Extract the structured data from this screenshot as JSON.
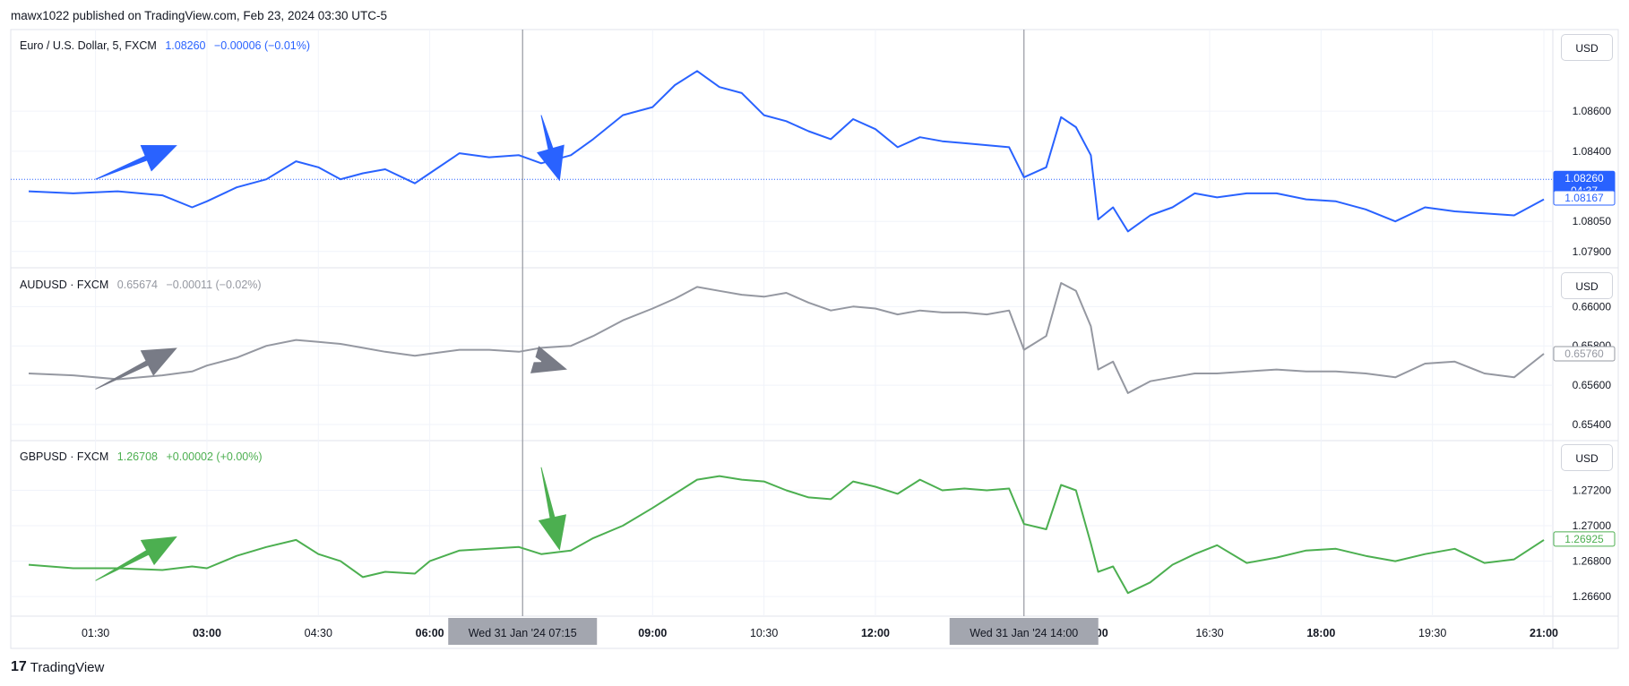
{
  "header": {
    "published_text": "mawx1022 published on TradingView.com, Feb 23, 2024 03:30 UTC-5"
  },
  "footer": {
    "brand": "TradingView",
    "logo_glyph": "17"
  },
  "colors": {
    "eur": "#2962ff",
    "aud": "#9598a1",
    "gbp": "#4caf50",
    "arrow_gray": "#787b86",
    "grid": "#f0f3fa",
    "border": "#e0e3eb"
  },
  "x_axis": {
    "tick_labels": [
      "01:30",
      "03:00",
      "04:30",
      "06:00",
      "09:00",
      "10:30",
      "12:00",
      "16:30",
      "18:00",
      "19:30",
      "21:00"
    ],
    "bold_ticks": [
      "03:00",
      "06:00",
      "09:00",
      "12:00",
      "18:00",
      "21:00"
    ],
    "crosshair_labels": [
      "Wed 31 Jan '24   07:15",
      "Wed 31 Jan '24   14:00"
    ],
    "cut_label": ":00"
  },
  "panes": [
    {
      "id": "eurusd",
      "legend": {
        "symbol": "Euro / U.S. Dollar, 5, FXCM",
        "price": "1.08260",
        "change": "−0.00006 (−0.01%)"
      },
      "usd_button": "USD",
      "color": "#2962ff",
      "ylim": [
        1.0785,
        1.0898
      ],
      "y_ticks": [
        "1.08600",
        "1.08400",
        "1.08050",
        "1.07900"
      ],
      "price_tags": [
        {
          "text": "1.08260",
          "sub": "04:37",
          "value": 1.0826,
          "style": "filled"
        },
        {
          "text": "1.08167",
          "value": 1.08167,
          "style": "outline"
        }
      ],
      "current_line": 1.0826,
      "arrows": [
        {
          "from": [
            1.5,
            1.0826
          ],
          "to": [
            2.6,
            1.0843
          ]
        },
        {
          "from": [
            7.5,
            1.0858
          ],
          "to": [
            7.75,
            1.0825
          ]
        }
      ]
    },
    {
      "id": "audusd",
      "legend": {
        "symbol": "AUDUSD · FXCM",
        "price": "0.65674",
        "change": "−0.00011 (−0.02%)"
      },
      "usd_button": "USD",
      "color": "#9598a1",
      "ylim": [
        0.6535,
        0.6617
      ],
      "y_ticks": [
        "0.66000",
        "0.65800",
        "0.65600",
        "0.65400"
      ],
      "price_tags": [
        {
          "text": "0.65760",
          "value": 0.6576,
          "style": "outline"
        }
      ],
      "arrows": [
        {
          "from": [
            1.5,
            0.6558
          ],
          "to": [
            2.6,
            0.6579
          ]
        },
        {
          "from": [
            7.5,
            0.6572
          ],
          "to": [
            7.85,
            0.6568
          ]
        }
      ]
    },
    {
      "id": "gbpusd",
      "legend": {
        "symbol": "GBPUSD · FXCM",
        "price": "1.26708",
        "change": "+0.00002 (+0.00%)"
      },
      "usd_button": "USD",
      "color": "#4caf50",
      "ylim": [
        1.2652,
        1.2745
      ],
      "y_ticks": [
        "1.27200",
        "1.27000",
        "1.26800",
        "1.26600"
      ],
      "price_tags": [
        {
          "text": "1.26925",
          "value": 1.26925,
          "style": "outline"
        }
      ],
      "arrows": [
        {
          "from": [
            1.5,
            1.2669
          ],
          "to": [
            2.6,
            1.2694
          ]
        },
        {
          "from": [
            7.5,
            1.2733
          ],
          "to": [
            7.75,
            1.2686
          ]
        }
      ]
    }
  ],
  "chart_data": {
    "type": "line",
    "x_unit": "hours since 00:00 (UTC-5), Wed 31 Jan 2024",
    "x_range": [
      0.6,
      21.0
    ],
    "vertical_markers": [
      7.25,
      14.0
    ],
    "series": [
      {
        "name": "Euro / U.S. Dollar, 5, FXCM",
        "x": [
          0.6,
          1.2,
          1.8,
          2.4,
          2.8,
          3.0,
          3.4,
          3.8,
          4.2,
          4.5,
          4.8,
          5.1,
          5.4,
          5.8,
          6.0,
          6.4,
          6.8,
          7.2,
          7.5,
          7.9,
          8.2,
          8.6,
          9.0,
          9.3,
          9.6,
          9.9,
          10.2,
          10.5,
          10.8,
          11.1,
          11.4,
          11.7,
          12.0,
          12.3,
          12.6,
          12.9,
          13.2,
          13.5,
          13.8,
          14.0,
          14.3,
          14.5,
          14.7,
          14.9,
          15.0,
          15.2,
          15.4,
          15.7,
          16.0,
          16.3,
          16.6,
          17.0,
          17.4,
          17.8,
          18.2,
          18.6,
          19.0,
          19.4,
          19.8,
          20.2,
          20.6,
          21.0
        ],
        "values": [
          1.082,
          1.0819,
          1.082,
          1.0818,
          1.0812,
          1.0815,
          1.0822,
          1.0826,
          1.0835,
          1.0832,
          1.0826,
          1.0829,
          1.0831,
          1.0824,
          1.0829,
          1.0839,
          1.0837,
          1.0838,
          1.0834,
          1.0838,
          1.0846,
          1.0858,
          1.0862,
          1.0873,
          1.088,
          1.0872,
          1.0869,
          1.0858,
          1.0855,
          1.085,
          1.0846,
          1.0856,
          1.0851,
          1.0842,
          1.0847,
          1.0845,
          1.0844,
          1.0843,
          1.0842,
          1.0827,
          1.0832,
          1.0857,
          1.0852,
          1.0838,
          1.0806,
          1.0812,
          1.08,
          1.0808,
          1.0812,
          1.0819,
          1.0817,
          1.0819,
          1.0819,
          1.0816,
          1.0815,
          1.0811,
          1.0805,
          1.0812,
          1.081,
          1.0809,
          1.0808,
          1.0816
        ]
      },
      {
        "name": "AUDUSD · FXCM",
        "x": [
          0.6,
          1.2,
          1.8,
          2.4,
          2.8,
          3.0,
          3.4,
          3.8,
          4.2,
          4.5,
          4.8,
          5.1,
          5.4,
          5.8,
          6.0,
          6.4,
          6.8,
          7.2,
          7.5,
          7.9,
          8.2,
          8.6,
          9.0,
          9.3,
          9.6,
          9.9,
          10.2,
          10.5,
          10.8,
          11.1,
          11.4,
          11.7,
          12.0,
          12.3,
          12.6,
          12.9,
          13.2,
          13.5,
          13.8,
          14.0,
          14.3,
          14.5,
          14.7,
          14.9,
          15.0,
          15.2,
          15.4,
          15.7,
          16.0,
          16.3,
          16.6,
          17.0,
          17.4,
          17.8,
          18.2,
          18.6,
          19.0,
          19.4,
          19.8,
          20.2,
          20.6,
          21.0
        ],
        "values": [
          0.6566,
          0.6565,
          0.6563,
          0.6565,
          0.6567,
          0.657,
          0.6574,
          0.658,
          0.6583,
          0.6582,
          0.6581,
          0.6579,
          0.6577,
          0.6575,
          0.6576,
          0.6578,
          0.6578,
          0.6577,
          0.6579,
          0.658,
          0.6585,
          0.6593,
          0.6599,
          0.6604,
          0.661,
          0.6608,
          0.6606,
          0.6605,
          0.6607,
          0.6602,
          0.6598,
          0.66,
          0.6599,
          0.6596,
          0.6598,
          0.6597,
          0.6597,
          0.6596,
          0.6598,
          0.6578,
          0.6585,
          0.6612,
          0.6608,
          0.659,
          0.6568,
          0.6572,
          0.6556,
          0.6562,
          0.6564,
          0.6566,
          0.6566,
          0.6567,
          0.6568,
          0.6567,
          0.6567,
          0.6566,
          0.6564,
          0.6571,
          0.6572,
          0.6566,
          0.6564,
          0.6576
        ]
      },
      {
        "name": "GBPUSD · FXCM",
        "x": [
          0.6,
          1.2,
          1.8,
          2.4,
          2.8,
          3.0,
          3.4,
          3.8,
          4.2,
          4.5,
          4.8,
          5.1,
          5.4,
          5.8,
          6.0,
          6.4,
          6.8,
          7.2,
          7.5,
          7.9,
          8.2,
          8.6,
          9.0,
          9.3,
          9.6,
          9.9,
          10.2,
          10.5,
          10.8,
          11.1,
          11.4,
          11.7,
          12.0,
          12.3,
          12.6,
          12.9,
          13.2,
          13.5,
          13.8,
          14.0,
          14.3,
          14.5,
          14.7,
          14.9,
          15.0,
          15.2,
          15.4,
          15.7,
          16.0,
          16.3,
          16.6,
          17.0,
          17.4,
          17.8,
          18.2,
          18.6,
          19.0,
          19.4,
          19.8,
          20.2,
          20.6,
          21.0
        ],
        "values": [
          1.2678,
          1.2676,
          1.2676,
          1.2675,
          1.2677,
          1.2676,
          1.2683,
          1.2688,
          1.2692,
          1.2684,
          1.268,
          1.2671,
          1.2674,
          1.2673,
          1.268,
          1.2686,
          1.2687,
          1.2688,
          1.2684,
          1.2686,
          1.2693,
          1.27,
          1.271,
          1.2718,
          1.2726,
          1.2728,
          1.2726,
          1.2725,
          1.272,
          1.2716,
          1.2715,
          1.2725,
          1.2722,
          1.2718,
          1.2726,
          1.272,
          1.2721,
          1.272,
          1.2721,
          1.2701,
          1.2698,
          1.2723,
          1.272,
          1.269,
          1.2674,
          1.2677,
          1.2662,
          1.2668,
          1.2678,
          1.2684,
          1.2689,
          1.2679,
          1.2682,
          1.2686,
          1.2687,
          1.2683,
          1.268,
          1.2684,
          1.2687,
          1.2679,
          1.2681,
          1.2692
        ]
      }
    ]
  }
}
